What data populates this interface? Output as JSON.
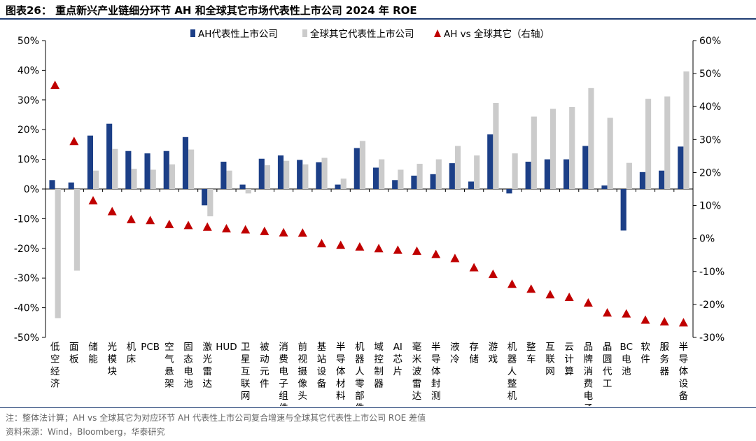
{
  "title": "图表26：  重点新兴产业链细分环节 AH 和全球其它市场代表性上市公司 2024 年 ROE",
  "note": "注：整体法计算；AH vs 全球其它为对应环节 AH 代表性上市公司复合增速与全球其它代表性上市公司 ROE 差值",
  "source": "资料来源：Wind，Bloomberg，华泰研究",
  "colors": {
    "ah": "#1c3f87",
    "global": "#cbcbcb",
    "diff": "#c00000",
    "rule": "#1f3d73"
  },
  "chart_data": {
    "type": "bar",
    "title": "重点新兴产业链细分环节 AH 和全球其它市场代表性上市公司 2024 年 ROE",
    "categories": [
      "低空经济",
      "面板",
      "储能",
      "光模块",
      "机床",
      "PCB",
      "空气悬架",
      "固态电池",
      "激光雷达",
      "HUD",
      "卫星互联网",
      "被动元件",
      "消费电子组件",
      "前视摄像头",
      "基站设备",
      "半导体材料",
      "机器人零部件",
      "域控制器",
      "AI芯片",
      "毫米波雷达",
      "半导体封测",
      "液冷",
      "存储",
      "游戏",
      "机器人整机",
      "整车",
      "互联网",
      "云计算",
      "品牌消费电子",
      "晶圆代工",
      "BC电池",
      "软件",
      "服务器",
      "半导体设备"
    ],
    "series": [
      {
        "name": "AH代表性上市公司",
        "type": "bar",
        "axis": "left",
        "values": [
          3.0,
          2.2,
          18.0,
          22.0,
          12.8,
          12.0,
          12.8,
          17.5,
          -5.5,
          9.2,
          1.5,
          10.2,
          11.3,
          9.8,
          9.0,
          1.5,
          13.8,
          7.2,
          3.0,
          4.5,
          5.0,
          8.7,
          2.5,
          18.4,
          -1.5,
          9.2,
          10.0,
          10.0,
          14.5,
          1.2,
          -14.0,
          5.7,
          6.2,
          14.3
        ]
      },
      {
        "name": "全球其它代表性上市公司",
        "type": "bar",
        "axis": "left",
        "values": [
          -43.5,
          -27.5,
          6.2,
          13.5,
          6.8,
          6.5,
          8.3,
          13.3,
          -9.2,
          6.2,
          -1.5,
          8.0,
          9.5,
          8.3,
          10.5,
          3.5,
          16.2,
          10.0,
          6.5,
          8.5,
          10.0,
          14.5,
          11.3,
          29.0,
          12.0,
          24.4,
          27.0,
          27.6,
          34.0,
          24.0,
          8.8,
          30.4,
          31.2,
          39.6
        ]
      },
      {
        "name": "AH vs 全球其它（右轴）",
        "type": "scatter",
        "axis": "right",
        "values": [
          46.5,
          29.5,
          11.5,
          8.2,
          5.8,
          5.5,
          4.3,
          4.0,
          3.5,
          3.0,
          2.7,
          2.2,
          1.8,
          1.7,
          -1.5,
          -2.0,
          -2.5,
          -3.0,
          -3.5,
          -3.8,
          -4.8,
          -6.0,
          -8.8,
          -10.8,
          -13.8,
          -15.3,
          -17.0,
          -17.8,
          -19.5,
          -22.5,
          -22.8,
          -24.7,
          -25.2,
          -25.5
        ]
      }
    ],
    "y_left": {
      "min": -50,
      "max": 50,
      "step": 10,
      "format": "percent",
      "ticks": [
        "-50%",
        "-40%",
        "-30%",
        "-20%",
        "-10%",
        "0%",
        "10%",
        "20%",
        "30%",
        "40%",
        "50%"
      ]
    },
    "y_right": {
      "min": -30,
      "max": 60,
      "step": 10,
      "format": "percent",
      "ticks": [
        "-30%",
        "-20%",
        "-10%",
        "0%",
        "10%",
        "20%",
        "30%",
        "40%",
        "50%",
        "60%"
      ]
    },
    "legend": {
      "position": "top",
      "items": [
        "AH代表性上市公司",
        "全球其它代表性上市公司",
        "AH vs 全球其它（右轴）"
      ]
    },
    "grid": false
  }
}
